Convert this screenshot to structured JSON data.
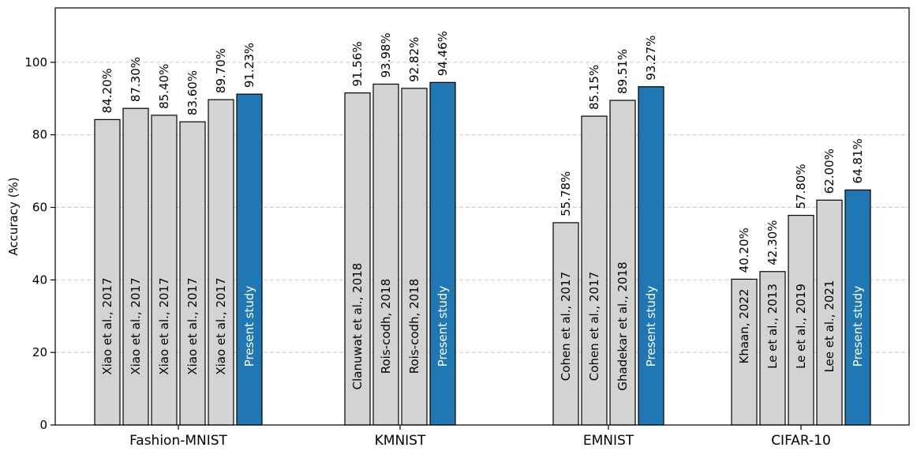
{
  "chart_data": {
    "type": "bar",
    "title": "",
    "xlabel": "",
    "ylabel": "Accuracy (%)",
    "ylim": [
      0,
      115
    ],
    "yticks": [
      0,
      20,
      40,
      60,
      80,
      100
    ],
    "grid": "horizontal dashed",
    "colors": {
      "reference": "#d3d3d3",
      "present": "#1f77b4",
      "grid": "#c8c8c8",
      "edge": "#000000"
    },
    "groups": [
      {
        "name": "Fashion-MNIST",
        "bars": [
          {
            "label": "Xiao et al., 2017",
            "value": 84.2,
            "value_text": "84.20%",
            "present": false
          },
          {
            "label": "Xiao et al., 2017",
            "value": 87.3,
            "value_text": "87.30%",
            "present": false
          },
          {
            "label": "Xiao et al., 2017",
            "value": 85.4,
            "value_text": "85.40%",
            "present": false
          },
          {
            "label": "Xiao et al., 2017",
            "value": 83.6,
            "value_text": "83.60%",
            "present": false
          },
          {
            "label": "Xiao et al., 2017",
            "value": 89.7,
            "value_text": "89.70%",
            "present": false
          },
          {
            "label": "Present study",
            "value": 91.23,
            "value_text": "91.23%",
            "present": true
          }
        ]
      },
      {
        "name": "KMNIST",
        "bars": [
          {
            "label": "Clanuwat et al., 2018",
            "value": 91.56,
            "value_text": "91.56%",
            "present": false
          },
          {
            "label": "Rois-codh, 2018",
            "value": 93.98,
            "value_text": "93.98%",
            "present": false
          },
          {
            "label": "Rois-codh, 2018",
            "value": 92.82,
            "value_text": "92.82%",
            "present": false
          },
          {
            "label": "Present study",
            "value": 94.46,
            "value_text": "94.46%",
            "present": true
          }
        ]
      },
      {
        "name": "EMNIST",
        "bars": [
          {
            "label": "Cohen et al., 2017",
            "value": 55.78,
            "value_text": "55.78%",
            "present": false
          },
          {
            "label": "Cohen et al., 2017",
            "value": 85.15,
            "value_text": "85.15%",
            "present": false
          },
          {
            "label": "Ghadekar et al., 2018",
            "value": 89.51,
            "value_text": "89.51%",
            "present": false
          },
          {
            "label": "Present study",
            "value": 93.27,
            "value_text": "93.27%",
            "present": true
          }
        ]
      },
      {
        "name": "CIFAR-10",
        "bars": [
          {
            "label": "Khaan, 2022",
            "value": 40.2,
            "value_text": "40.20%",
            "present": false
          },
          {
            "label": "Le et al., 2013",
            "value": 42.3,
            "value_text": "42.30%",
            "present": false
          },
          {
            "label": "Le et al., 2019",
            "value": 57.8,
            "value_text": "57.80%",
            "present": false
          },
          {
            "label": "Lee et al., 2021",
            "value": 62.0,
            "value_text": "62.00%",
            "present": false
          },
          {
            "label": "Present study",
            "value": 64.81,
            "value_text": "64.81%",
            "present": true
          }
        ]
      }
    ]
  }
}
